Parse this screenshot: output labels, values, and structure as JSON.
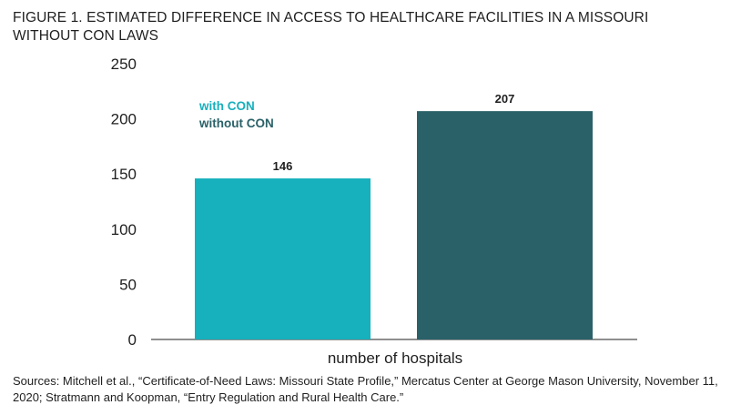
{
  "chart_data": {
    "type": "bar",
    "title": "FIGURE 1. ESTIMATED DIFFERENCE IN ACCESS TO HEALTHCARE FACILITIES IN A MISSOURI WITHOUT CON LAWS",
    "xlabel": "number of hospitals",
    "ylabel": "",
    "ylim": [
      0,
      250
    ],
    "yticks": [
      0,
      50,
      100,
      150,
      200,
      250
    ],
    "grid": false,
    "legend_position": "top-left",
    "categories": [
      "with CON",
      "without CON"
    ],
    "values": [
      146,
      207
    ],
    "data_labels": [
      "146",
      "207"
    ],
    "colors": [
      "#17b0bd",
      "#2a6168"
    ],
    "legend": [
      {
        "label": "with CON",
        "color": "#17b0bd"
      },
      {
        "label": "without CON",
        "color": "#2a6168"
      }
    ]
  },
  "source": "Sources: Mitchell et al., “Certificate-of-Need Laws: Missouri State Profile,” Mercatus Center at George Mason University, November 11, 2020; Stratmann and Koopman, “Entry Regulation and Rural Health Care.”"
}
